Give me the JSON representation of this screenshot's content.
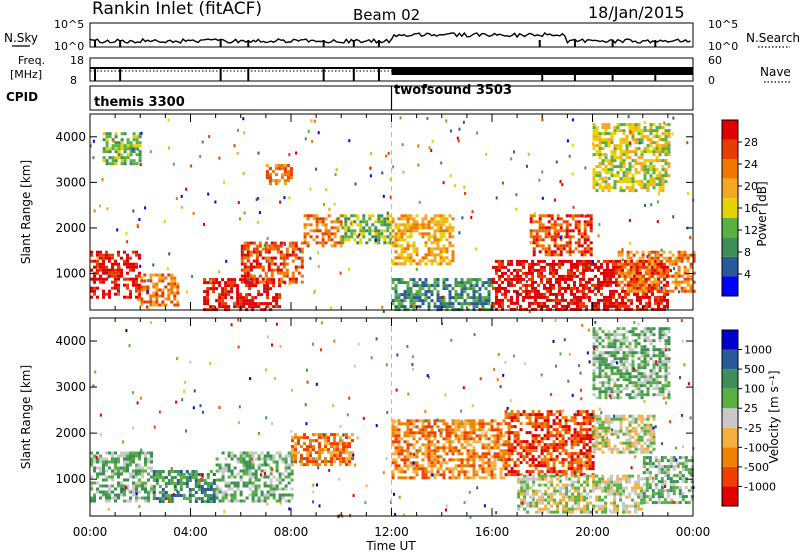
{
  "header": {
    "site": "Rankin Inlet (fitACF)",
    "beam": "Beam 02",
    "date": "18/Jan/2015"
  },
  "strip_labels": {
    "nsky": "N.Sky",
    "nsky_ticks": [
      "10^5",
      "10^0"
    ],
    "nsearch": "N.Search",
    "nsearch_ticks": [
      "10^5",
      "10^0"
    ],
    "freq_top": "Freq.",
    "freq_bottom": "[MHz]",
    "freq_ticks": [
      "18",
      "8"
    ],
    "nave": "Nave",
    "nave_ticks": [
      "60",
      "0"
    ],
    "cpid": "CPID"
  },
  "cpid_modes": [
    {
      "name": "themis 3300",
      "start_hour": 0
    },
    {
      "name": "twofsound 3503",
      "start_hour": 12
    }
  ],
  "colors": {
    "power": [
      "#0000ff",
      "#2a5a9a",
      "#3e8e58",
      "#58b040",
      "#e6d200",
      "#f5a623",
      "#f07800",
      "#e83c00",
      "#e00000"
    ],
    "velocity": [
      "#0000cc",
      "#2a5a9a",
      "#3e8e58",
      "#58b040",
      "#c8c8c8",
      "#f5b040",
      "#f08000",
      "#f04000",
      "#e00000"
    ]
  },
  "chart_data": [
    {
      "type": "heatmap",
      "name": "power",
      "ylabel": "Slant Range [km]",
      "colorbar_label": "Power [dB]",
      "yticks": [
        1000,
        2000,
        3000,
        4000
      ],
      "ylim": [
        200,
        4500
      ],
      "xlim_hours": [
        0,
        24
      ],
      "colorbar_ticks": [
        "4",
        "8",
        "12",
        "16",
        "20",
        "24",
        "28"
      ],
      "colorbar_range": [
        0,
        32
      ],
      "echo_regions": [
        {
          "t0": 0.0,
          "t1": 2.0,
          "r0": 500,
          "r1": 1500,
          "level": 8
        },
        {
          "t0": 2.0,
          "t1": 3.5,
          "r0": 300,
          "r1": 1000,
          "level": 6
        },
        {
          "t0": 4.5,
          "t1": 7.5,
          "r0": 200,
          "r1": 900,
          "level": 8
        },
        {
          "t0": 6.0,
          "t1": 8.5,
          "r0": 800,
          "r1": 1700,
          "level": 7
        },
        {
          "t0": 8.5,
          "t1": 10.0,
          "r0": 1600,
          "r1": 2300,
          "level": 6
        },
        {
          "t0": 10.0,
          "t1": 12.0,
          "r0": 1700,
          "r1": 2300,
          "level": 3
        },
        {
          "t0": 12.0,
          "t1": 14.5,
          "r0": 1200,
          "r1": 2300,
          "level": 5
        },
        {
          "t0": 12.0,
          "t1": 16.0,
          "r0": 200,
          "r1": 900,
          "level": 2
        },
        {
          "t0": 16.0,
          "t1": 23.0,
          "r0": 200,
          "r1": 1300,
          "level": 8
        },
        {
          "t0": 17.5,
          "t1": 20.0,
          "r0": 1400,
          "r1": 2300,
          "level": 7
        },
        {
          "t0": 21.0,
          "t1": 24.0,
          "r0": 600,
          "r1": 1500,
          "level": 6
        },
        {
          "t0": 20.0,
          "t1": 23.0,
          "r0": 2800,
          "r1": 4300,
          "level": 4
        },
        {
          "t0": 0.5,
          "t1": 2.0,
          "r0": 3400,
          "r1": 4100,
          "level": 3
        },
        {
          "t0": 7.0,
          "t1": 8.0,
          "r0": 3000,
          "r1": 3400,
          "level": 6
        }
      ]
    },
    {
      "type": "heatmap",
      "name": "velocity",
      "ylabel": "Slant Range [km]",
      "colorbar_label": "Velocity [m s⁻¹]",
      "yticks": [
        1000,
        2000,
        3000,
        4000
      ],
      "ylim": [
        200,
        4500
      ],
      "xlim_hours": [
        0,
        24
      ],
      "xlabel": "Time UT",
      "xtick_labels": [
        "00:00",
        "04:00",
        "08:00",
        "12:00",
        "16:00",
        "20:00",
        "00:00"
      ],
      "colorbar_ticks": [
        "1000",
        "500",
        "100",
        "25",
        "-25",
        "-100",
        "-500",
        "-1000"
      ],
      "echo_regions": [
        {
          "t0": 0.0,
          "t1": 2.5,
          "r0": 500,
          "r1": 1600,
          "level": 3
        },
        {
          "t0": 2.5,
          "t1": 5.0,
          "r0": 500,
          "r1": 1200,
          "level": 2
        },
        {
          "t0": 5.0,
          "t1": 8.0,
          "r0": 500,
          "r1": 1600,
          "level": 3
        },
        {
          "t0": 8.0,
          "t1": 10.5,
          "r0": 1300,
          "r1": 2000,
          "level": 6
        },
        {
          "t0": 12.0,
          "t1": 16.5,
          "r0": 1000,
          "r1": 2300,
          "level": 6
        },
        {
          "t0": 16.5,
          "t1": 20.0,
          "r0": 1100,
          "r1": 2500,
          "level": 7
        },
        {
          "t0": 17.0,
          "t1": 22.0,
          "r0": 300,
          "r1": 1100,
          "level": 4
        },
        {
          "t0": 20.0,
          "t1": 22.5,
          "r0": 1600,
          "r1": 2400,
          "level": 4
        },
        {
          "t0": 22.0,
          "t1": 24.0,
          "r0": 500,
          "r1": 1500,
          "level": 3
        },
        {
          "t0": 20.0,
          "t1": 23.0,
          "r0": 2800,
          "r1": 4300,
          "level": 3
        }
      ]
    }
  ]
}
